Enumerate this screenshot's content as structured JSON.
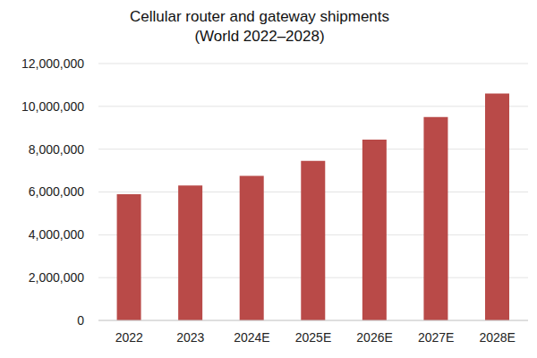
{
  "chart_data": {
    "type": "bar",
    "title": "Cellular router and gateway shipments",
    "subtitle": "(World 2022–2028)",
    "categories": [
      "2022",
      "2023",
      "2024E",
      "2025E",
      "2026E",
      "2027E",
      "2028E"
    ],
    "values": [
      5900000,
      6300000,
      6750000,
      7450000,
      8450000,
      9500000,
      10600000
    ],
    "color": "#b94a48",
    "ylim": [
      0,
      12000000
    ],
    "yticks": [
      0,
      {
        "value": 2000000,
        "label": "2,000,000"
      },
      {
        "value": 4000000,
        "label": "4,000,000"
      },
      {
        "value": 6000000,
        "label": "6,000,000"
      },
      {
        "value": 8000000,
        "label": "8,000,000"
      },
      {
        "value": 10000000,
        "label": "10,000,000"
      },
      {
        "value": 12000000,
        "label": "12,000,000"
      }
    ],
    "grid": true
  }
}
